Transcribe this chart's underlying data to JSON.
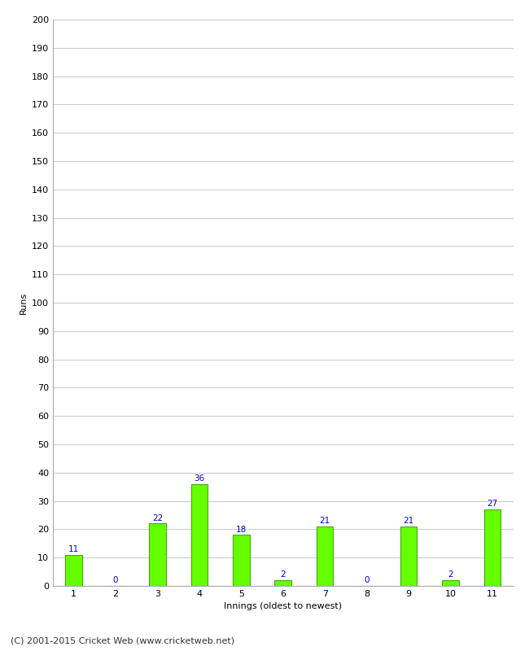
{
  "xlabel": "Innings (oldest to newest)",
  "ylabel": "Runs",
  "categories": [
    "1",
    "2",
    "3",
    "4",
    "5",
    "6",
    "7",
    "8",
    "9",
    "10",
    "11"
  ],
  "values": [
    11,
    0,
    22,
    36,
    18,
    2,
    21,
    0,
    21,
    2,
    27
  ],
  "bar_color": "#66ff00",
  "bar_edge_color": "#44aa00",
  "label_color": "#0000cc",
  "ylim": [
    0,
    200
  ],
  "yticks": [
    0,
    10,
    20,
    30,
    40,
    50,
    60,
    70,
    80,
    90,
    100,
    110,
    120,
    130,
    140,
    150,
    160,
    170,
    180,
    190,
    200
  ],
  "background_color": "#ffffff",
  "footer": "(C) 2001-2015 Cricket Web (www.cricketweb.net)",
  "label_fontsize": 7.5,
  "axis_fontsize": 8,
  "ylabel_fontsize": 8,
  "footer_fontsize": 8,
  "bar_width": 0.4
}
